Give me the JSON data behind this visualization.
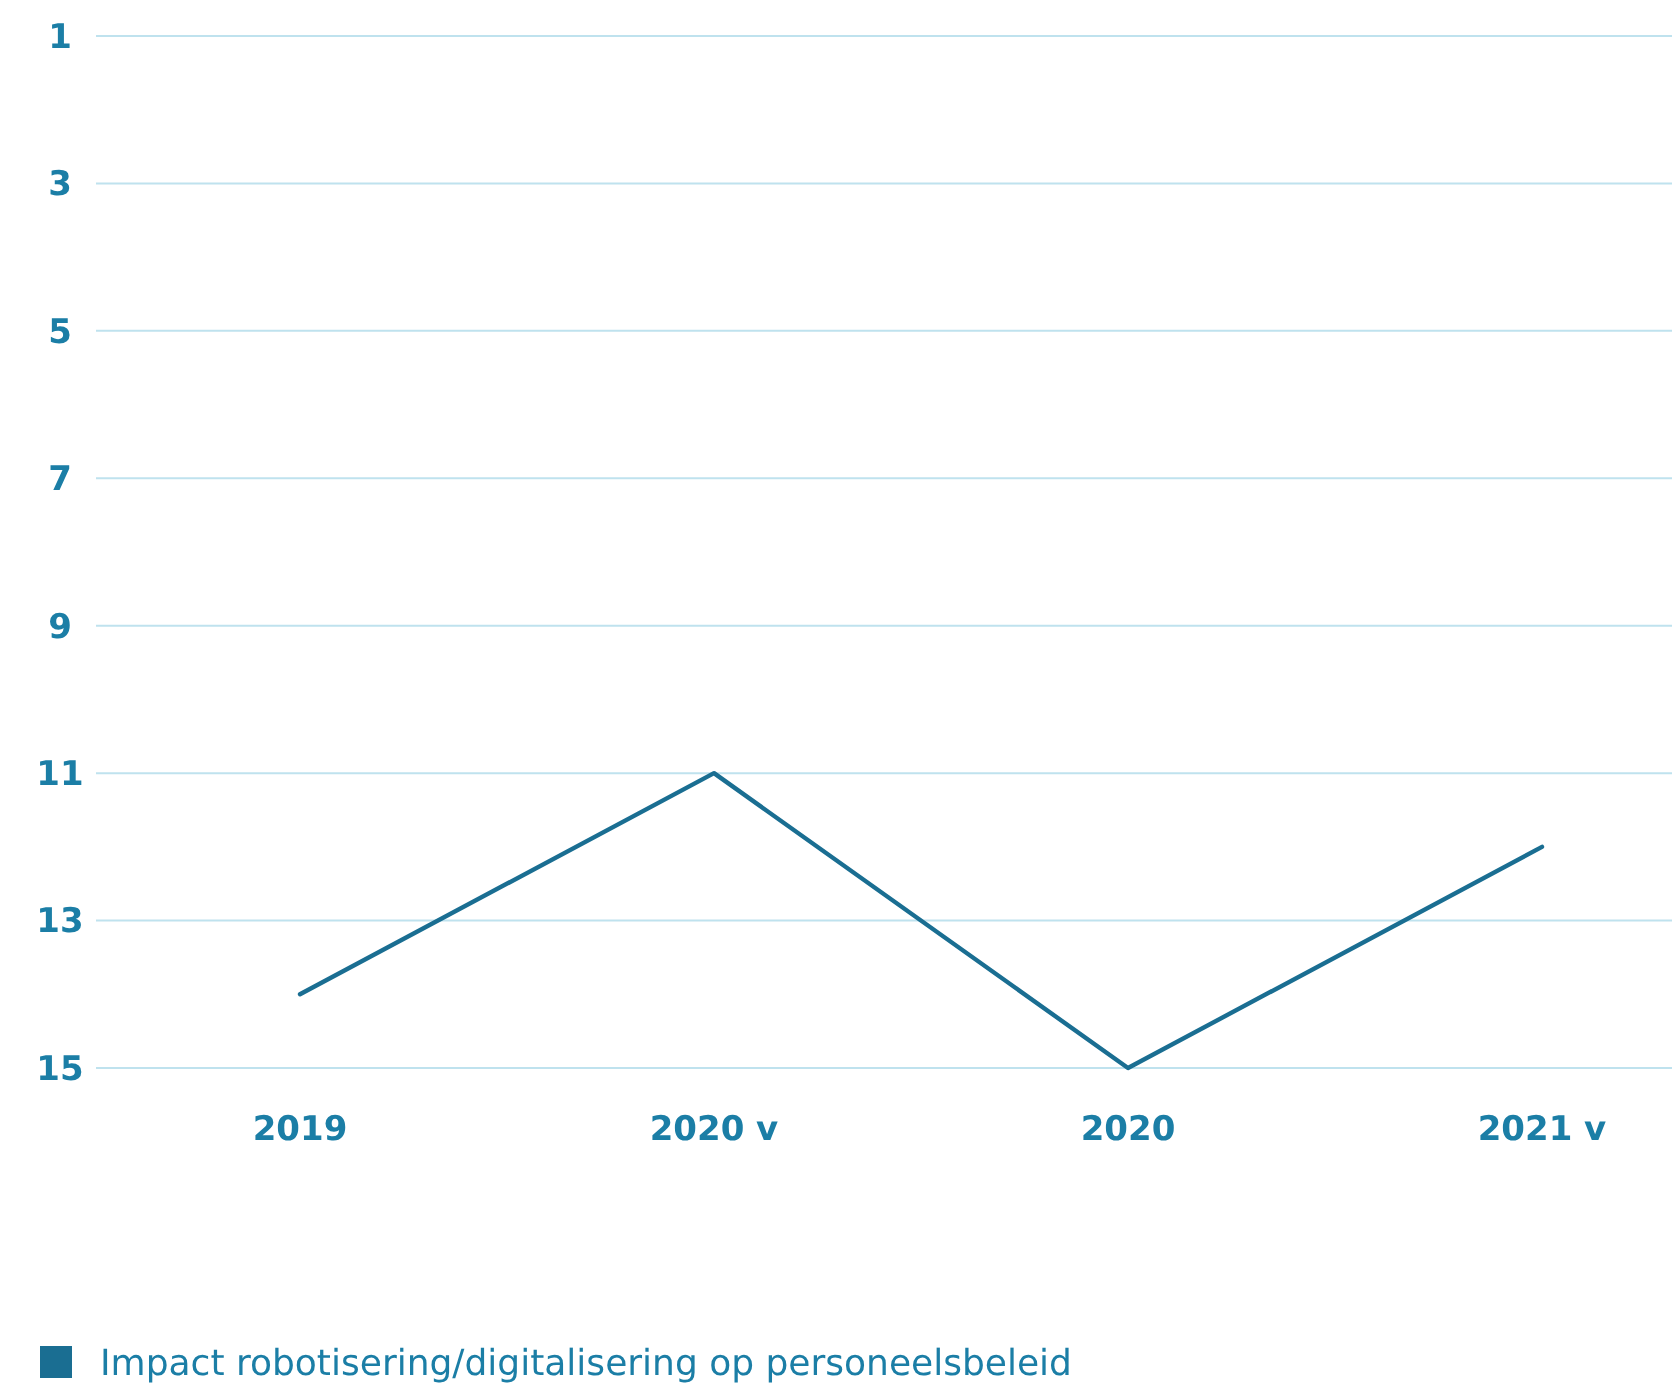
{
  "chart_data": {
    "type": "line",
    "categories": [
      "2019",
      "2020 v",
      "2020",
      "2021 v"
    ],
    "series": [
      {
        "name": "Impact robotisering/digitalisering op personeelsbeleid",
        "color": "#1a6e92",
        "values": [
          14,
          11,
          15,
          12
        ]
      }
    ],
    "ylim": [
      15,
      1
    ],
    "yticks": [
      1,
      3,
      5,
      7,
      9,
      11,
      13,
      15
    ],
    "grid": "y",
    "legend": "bottom left",
    "marker": "none",
    "line_style": "solid"
  }
}
